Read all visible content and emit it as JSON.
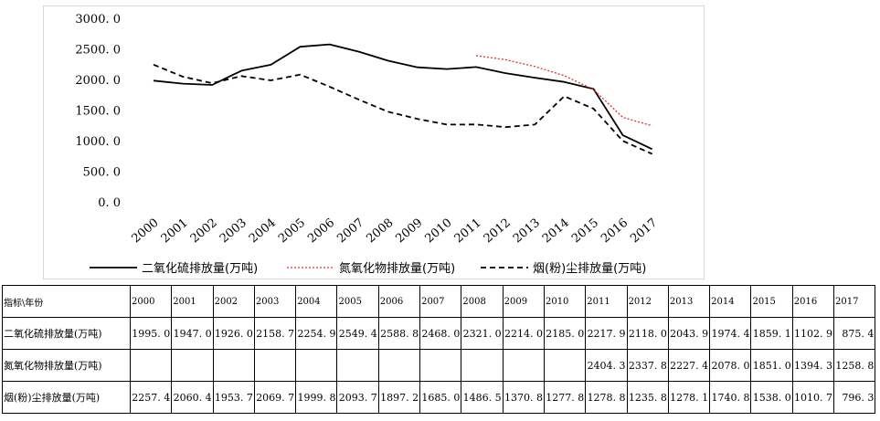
{
  "chart_data": {
    "type": "line",
    "categories": [
      "2000",
      "2001",
      "2002",
      "2003",
      "2004",
      "2005",
      "2006",
      "2007",
      "2008",
      "2009",
      "2010",
      "2011",
      "2012",
      "2013",
      "2014",
      "2015",
      "2016",
      "2017"
    ],
    "ylim": [
      0,
      3000
    ],
    "yticks": [
      "0. 0",
      "500. 0",
      "1000. 0",
      "1500. 0",
      "2000. 0",
      "2500. 0",
      "3000. 0"
    ],
    "ytick_values": [
      0,
      500,
      1000,
      1500,
      2000,
      2500,
      3000
    ],
    "grid": false,
    "legend_position": "bottom",
    "series": [
      {
        "name": "二氧化硫排放量(万吨)",
        "style": "solid",
        "color": "#000000",
        "values": [
          1995.0,
          1947.0,
          1926.0,
          2158.7,
          2254.9,
          2549.4,
          2588.8,
          2468.0,
          2321.0,
          2214.0,
          2185.0,
          2217.9,
          2118.0,
          2043.9,
          1974.4,
          1859.1,
          1102.9,
          875.4
        ]
      },
      {
        "name": "氮氧化物排放量(万吨)",
        "style": "dotted",
        "color": "#e03030",
        "values": [
          null,
          null,
          null,
          null,
          null,
          null,
          null,
          null,
          null,
          null,
          null,
          2404.3,
          2337.8,
          2227.4,
          2078.0,
          1851.0,
          1394.3,
          1258.8
        ]
      },
      {
        "name": "烟(粉)尘排放量(万吨)",
        "style": "dashed",
        "color": "#000000",
        "values": [
          2257.4,
          2060.4,
          1953.7,
          2069.7,
          1999.8,
          2093.7,
          1897.2,
          1685.0,
          1486.5,
          1370.8,
          1277.8,
          1278.8,
          1235.8,
          1278.1,
          1740.8,
          1538.0,
          1010.7,
          796.3
        ]
      }
    ]
  },
  "table": {
    "header_label": "指标\\年份",
    "years": [
      "2000",
      "2001",
      "2002",
      "2003",
      "2004",
      "2005",
      "2006",
      "2007",
      "2008",
      "2009",
      "2010",
      "2011",
      "2012",
      "2013",
      "2014",
      "2015",
      "2016",
      "2017"
    ],
    "rows": [
      {
        "label": "二氧化硫排放量(万吨)",
        "cells": [
          "1995. 0",
          "1947. 0",
          "1926. 0",
          "2158. 7",
          "2254. 9",
          "2549. 4",
          "2588. 8",
          "2468. 0",
          "2321. 0",
          "2214. 0",
          "2185. 0",
          "2217. 9",
          "2118. 0",
          "2043. 9",
          "1974. 4",
          "1859. 1",
          "1102. 9",
          "875. 4"
        ]
      },
      {
        "label": "氮氧化物排放量(万吨)",
        "cells": [
          "",
          "",
          "",
          "",
          "",
          "",
          "",
          "",
          "",
          "",
          "",
          "2404. 3",
          "2337. 8",
          "2227. 4",
          "2078. 0",
          "1851. 0",
          "1394. 3",
          "1258. 8"
        ]
      },
      {
        "label": "烟(粉)尘排放量(万吨)",
        "cells": [
          "2257. 4",
          "2060. 4",
          "1953. 7",
          "2069. 7",
          "1999. 8",
          "2093. 7",
          "1897. 2",
          "1685. 0",
          "1486. 5",
          "1370. 8",
          "1277. 8",
          "1278. 8",
          "1235. 8",
          "1278. 1",
          "1740. 8",
          "1538. 0",
          "1010. 7",
          "796. 3"
        ]
      }
    ]
  }
}
